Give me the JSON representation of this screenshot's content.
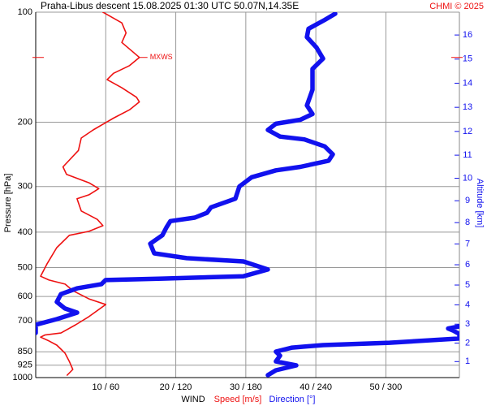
{
  "chart_data": {
    "type": "line",
    "title": "Praha-Libus   descent   15.08.2025 01:30 UTC   50.07N,14.35E",
    "credit": "CHMI © 2025",
    "xlabel": "WIND",
    "ylabel": "Pressure [hPa]",
    "y2label": "Altitude [km]",
    "log_y": true,
    "grid": true,
    "ylim": [
      100,
      1000
    ],
    "yticks": [
      100,
      200,
      300,
      400,
      500,
      600,
      700,
      850,
      925,
      1000
    ],
    "xlim": [
      0,
      60.5
    ],
    "x2lim": [
      0,
      363
    ],
    "xticks": [
      {
        "value": 10,
        "label": "10 / 60"
      },
      {
        "value": 20,
        "label": "20 / 120"
      },
      {
        "value": 30,
        "label": "30 / 180"
      },
      {
        "value": 40,
        "label": "40 / 240"
      },
      {
        "value": 50,
        "label": "50 / 300"
      }
    ],
    "y2ticks": [
      1,
      2,
      3,
      4,
      5,
      6,
      7,
      8,
      9,
      10,
      11,
      12,
      13,
      14,
      15,
      16
    ],
    "mxws": {
      "label": "MXWS",
      "pressure": 133,
      "value": 14.8
    },
    "series": [
      {
        "name": "Speed [m/s]",
        "color": "#ee1111",
        "pressure": [
          100,
          107,
          114,
          121,
          129,
          133,
          140,
          147,
          153,
          161,
          171,
          176,
          185,
          195,
          210,
          221,
          239,
          265,
          278,
          293,
          304,
          316,
          324,
          350,
          369,
          384,
          398,
          408,
          441,
          489,
          528,
          541,
          555,
          578,
          609,
          631,
          681,
          717,
          755,
          765,
          775,
          794,
          815,
          836,
          858,
          903,
          950,
          985
        ],
        "values": [
          9.6,
          12.3,
          12.9,
          12.3,
          14.0,
          14.8,
          13.4,
          11.1,
          10.2,
          12.3,
          14.4,
          14.8,
          13.4,
          11.1,
          8.2,
          6.5,
          6.1,
          3.9,
          4.4,
          7.6,
          9.0,
          7.6,
          5.9,
          6.5,
          8.8,
          9.6,
          7.6,
          4.8,
          3.0,
          1.6,
          0.7,
          1.9,
          4.2,
          5.3,
          7.6,
          10.0,
          7.6,
          5.7,
          3.6,
          1.3,
          0.7,
          1.9,
          3.0,
          3.6,
          4.2,
          4.8,
          5.3,
          4.5
        ]
      },
      {
        "name": "Direction [°]",
        "color": "#1111ee",
        "axis": "x2",
        "pressure": [
          101,
          105,
          111,
          117,
          125,
          134,
          143,
          163,
          180,
          190,
          197,
          202,
          210,
          219,
          223,
          233,
          245,
          255,
          265,
          271,
          283,
          300,
          324,
          342,
          354,
          365,
          373,
          388,
          408,
          430,
          457,
          471,
          481,
          506,
          528,
          536,
          541,
          555,
          570,
          591,
          621,
          647,
          664,
          692,
          717,
          755,
          null,
          724,
          734,
          743,
          760,
          782,
          803,
          815,
          828,
          849,
          871,
          903,
          926,
          955,
          985
        ],
        "values": [
          256.6,
          247.6,
          233.7,
          232.3,
          240.6,
          246.2,
          237.1,
          237.1,
          232.3,
          237.1,
          226.7,
          205.8,
          198.9,
          209.3,
          230.2,
          247.6,
          254.5,
          251.0,
          226.7,
          205.8,
          185.0,
          174.5,
          171.1,
          150.2,
          146.7,
          136.3,
          115.4,
          112.0,
          108.5,
          98.1,
          101.5,
          129.3,
          178.0,
          198.9,
          178.0,
          108.5,
          59.8,
          56.3,
          35.5,
          21.6,
          18.1,
          25.0,
          35.5,
          18.1,
          0,
          0,
          null,
          363,
          353.3,
          357.4,
          363,
          363,
          303.2,
          246.2,
          219.7,
          205.8,
          209.3,
          205.8,
          223.2,
          205.8,
          198.9
        ]
      }
    ]
  }
}
